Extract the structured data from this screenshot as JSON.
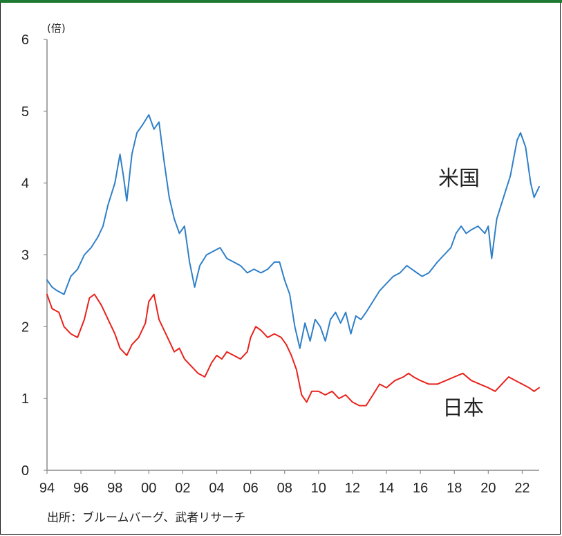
{
  "source_note": "出所：ブルームバーグ、武者リサーチ",
  "chart_data": {
    "type": "line",
    "ylabel": "(倍)",
    "ylim": [
      0,
      6
    ],
    "y_ticks": [
      "0",
      "1",
      "2",
      "3",
      "4",
      "5",
      "6"
    ],
    "xlim": [
      1994,
      2023
    ],
    "x_ticks": [
      "94",
      "96",
      "98",
      "00",
      "02",
      "04",
      "06",
      "08",
      "10",
      "12",
      "14",
      "16",
      "18",
      "20",
      "22"
    ],
    "grid": false,
    "series": [
      {
        "name": "米国",
        "color": "#2f7fc8",
        "x": [
          1994.0,
          1994.3,
          1994.6,
          1995.0,
          1995.4,
          1995.8,
          1996.2,
          1996.6,
          1997.0,
          1997.3,
          1997.6,
          1998.0,
          1998.3,
          1998.5,
          1998.7,
          1999.0,
          1999.3,
          1999.6,
          2000.0,
          2000.3,
          2000.6,
          2000.9,
          2001.2,
          2001.5,
          2001.8,
          2002.1,
          2002.4,
          2002.7,
          2003.0,
          2003.4,
          2003.8,
          2004.2,
          2004.6,
          2005.0,
          2005.4,
          2005.8,
          2006.2,
          2006.6,
          2007.0,
          2007.4,
          2007.7,
          2008.0,
          2008.3,
          2008.6,
          2008.9,
          2009.2,
          2009.5,
          2009.8,
          2010.1,
          2010.4,
          2010.7,
          2011.0,
          2011.3,
          2011.6,
          2011.9,
          2012.2,
          2012.5,
          2012.8,
          2013.2,
          2013.6,
          2014.0,
          2014.4,
          2014.8,
          2015.2,
          2015.5,
          2015.8,
          2016.1,
          2016.5,
          2017.0,
          2017.4,
          2017.8,
          2018.1,
          2018.4,
          2018.7,
          2019.0,
          2019.4,
          2019.8,
          2020.0,
          2020.2,
          2020.5,
          2020.9,
          2021.3,
          2021.7,
          2021.9,
          2022.2,
          2022.5,
          2022.7,
          2023.0
        ],
        "values": [
          2.65,
          2.55,
          2.5,
          2.45,
          2.7,
          2.8,
          3.0,
          3.1,
          3.25,
          3.4,
          3.7,
          4.0,
          4.4,
          4.1,
          3.75,
          4.4,
          4.7,
          4.8,
          4.95,
          4.75,
          4.85,
          4.3,
          3.8,
          3.5,
          3.3,
          3.4,
          2.9,
          2.55,
          2.85,
          3.0,
          3.05,
          3.1,
          2.95,
          2.9,
          2.85,
          2.75,
          2.8,
          2.75,
          2.8,
          2.9,
          2.9,
          2.65,
          2.45,
          2.0,
          1.7,
          2.05,
          1.8,
          2.1,
          2.0,
          1.8,
          2.1,
          2.2,
          2.05,
          2.2,
          1.9,
          2.15,
          2.1,
          2.2,
          2.35,
          2.5,
          2.6,
          2.7,
          2.75,
          2.85,
          2.8,
          2.75,
          2.7,
          2.75,
          2.9,
          3.0,
          3.1,
          3.3,
          3.4,
          3.3,
          3.35,
          3.4,
          3.3,
          3.4,
          2.95,
          3.5,
          3.8,
          4.1,
          4.6,
          4.7,
          4.5,
          4.0,
          3.8,
          3.95
        ]
      },
      {
        "name": "日本",
        "color": "#e8221c",
        "x": [
          1994.0,
          1994.3,
          1994.7,
          1995.0,
          1995.4,
          1995.8,
          1996.2,
          1996.5,
          1996.8,
          1997.2,
          1997.6,
          1998.0,
          1998.3,
          1998.7,
          1999.0,
          1999.4,
          1999.8,
          2000.0,
          2000.3,
          2000.6,
          2000.9,
          2001.2,
          2001.5,
          2001.8,
          2002.1,
          2002.5,
          2002.9,
          2003.3,
          2003.7,
          2004.0,
          2004.3,
          2004.6,
          2005.0,
          2005.4,
          2005.8,
          2006.0,
          2006.3,
          2006.6,
          2007.0,
          2007.4,
          2007.8,
          2008.1,
          2008.4,
          2008.7,
          2009.0,
          2009.3,
          2009.6,
          2010.0,
          2010.4,
          2010.8,
          2011.2,
          2011.6,
          2012.0,
          2012.4,
          2012.8,
          2013.2,
          2013.6,
          2014.0,
          2014.5,
          2015.0,
          2015.3,
          2015.6,
          2016.0,
          2016.5,
          2017.0,
          2017.5,
          2018.0,
          2018.5,
          2019.0,
          2019.5,
          2020.0,
          2020.4,
          2020.8,
          2021.2,
          2021.6,
          2022.0,
          2022.4,
          2022.7,
          2023.0
        ],
        "values": [
          2.45,
          2.25,
          2.2,
          2.0,
          1.9,
          1.85,
          2.1,
          2.4,
          2.45,
          2.3,
          2.1,
          1.9,
          1.7,
          1.6,
          1.75,
          1.85,
          2.05,
          2.35,
          2.45,
          2.1,
          1.95,
          1.8,
          1.65,
          1.7,
          1.55,
          1.45,
          1.35,
          1.3,
          1.5,
          1.6,
          1.55,
          1.65,
          1.6,
          1.55,
          1.65,
          1.85,
          2.0,
          1.95,
          1.85,
          1.9,
          1.85,
          1.75,
          1.6,
          1.4,
          1.05,
          0.95,
          1.1,
          1.1,
          1.05,
          1.1,
          1.0,
          1.05,
          0.95,
          0.9,
          0.9,
          1.05,
          1.2,
          1.15,
          1.25,
          1.3,
          1.35,
          1.3,
          1.25,
          1.2,
          1.2,
          1.25,
          1.3,
          1.35,
          1.25,
          1.2,
          1.15,
          1.1,
          1.2,
          1.3,
          1.25,
          1.2,
          1.15,
          1.1,
          1.15
        ]
      }
    ]
  }
}
